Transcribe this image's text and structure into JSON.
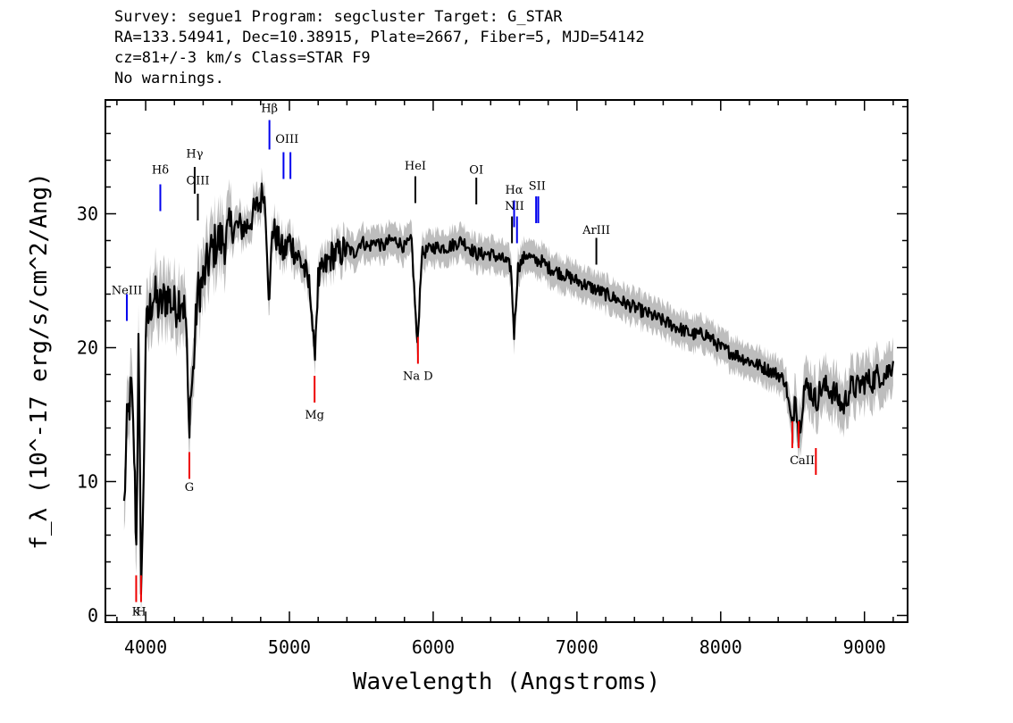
{
  "header": {
    "line1": "Survey: segue1 Program: segcluster Target: G_STAR",
    "line2": "RA=133.54941, Dec=10.38915, Plate=2667, Fiber=5, MJD=54142",
    "line3": "cz=81+/-3 km/s Class=STAR F9",
    "line4": "No warnings."
  },
  "chart_data": {
    "type": "line",
    "xlabel": "Wavelength (Angstroms)",
    "ylabel": "f_λ (10^-17 erg/s/cm^2/Ang)",
    "xlim": [
      3720,
      9300
    ],
    "ylim": [
      -0.5,
      38.5
    ],
    "x_ticks": [
      4000,
      5000,
      6000,
      7000,
      8000,
      9000
    ],
    "y_ticks": [
      0,
      10,
      20,
      30
    ],
    "grid": false,
    "series": [
      {
        "color": "#000000",
        "x": [
          3850,
          3870,
          3900,
          3920,
          3935,
          3950,
          3968,
          3980,
          4000,
          4050,
          4100,
          4150,
          4200,
          4250,
          4280,
          4300,
          4310,
          4330,
          4360,
          4400,
          4450,
          4500,
          4550,
          4600,
          4650,
          4700,
          4750,
          4800,
          4820,
          4840,
          4861,
          4880,
          4920,
          4960,
          5000,
          5050,
          5100,
          5150,
          5172,
          5200,
          5250,
          5300,
          5350,
          5400,
          5450,
          5500,
          5550,
          5600,
          5650,
          5700,
          5750,
          5800,
          5850,
          5890,
          5920,
          6000,
          6100,
          6200,
          6300,
          6400,
          6500,
          6540,
          6563,
          6590,
          6650,
          6700,
          6750,
          6800,
          6900,
          7000,
          7100,
          7200,
          7300,
          7400,
          7500,
          7600,
          7700,
          7800,
          7900,
          8000,
          8100,
          8200,
          8300,
          8400,
          8450,
          8498,
          8520,
          8542,
          8580,
          8620,
          8662,
          8700,
          8750,
          8800,
          8850,
          8900,
          8950,
          9000,
          9050,
          9100,
          9150,
          9200
        ],
        "y": [
          8,
          14,
          17,
          12,
          5,
          20,
          3,
          6,
          21,
          24,
          23,
          24,
          23,
          24,
          22,
          14,
          16,
          18,
          24,
          25,
          27,
          28,
          28,
          29,
          29,
          29,
          30,
          31,
          32,
          29,
          23,
          29,
          28,
          27,
          28,
          27,
          26,
          24,
          19,
          25,
          26,
          27,
          27,
          27.5,
          27,
          28,
          27.5,
          28,
          27.5,
          28,
          28,
          27.5,
          28,
          20,
          27,
          27.5,
          27.5,
          28,
          27,
          27,
          26.5,
          26,
          21,
          26,
          27,
          26.5,
          26.5,
          26,
          25.5,
          25,
          24.5,
          24,
          23.5,
          23,
          22.5,
          22,
          21.5,
          21,
          21,
          20,
          19.5,
          19,
          18.5,
          18,
          17.5,
          14,
          17,
          13.5,
          17,
          17,
          16,
          17,
          17,
          16.5,
          15.5,
          17,
          17,
          17.5,
          17.5,
          18,
          18,
          19
        ]
      }
    ],
    "emission_lines": [
      {
        "label": "NeIII",
        "x": 3869,
        "y_bottom": 22.0,
        "y_top": 24.0,
        "label_y": 24.0,
        "color": "#0000ee"
      },
      {
        "label": "Hδ",
        "x": 4102,
        "y_bottom": 30.2,
        "y_top": 32.2,
        "label_y": 33.0,
        "color": "#0000ee"
      },
      {
        "label": "Hγ",
        "x": 4341,
        "y_bottom": 31.5,
        "y_top": 33.5,
        "label_y": 34.2,
        "color": "#000000"
      },
      {
        "label": "OIII",
        "x": 4363,
        "y_bottom": 29.5,
        "y_top": 31.5,
        "label_y": 32.2,
        "color": "#000000"
      },
      {
        "label": "Hβ",
        "x": 4861,
        "y_bottom": 34.8,
        "y_top": 37.0,
        "label_y": 37.6,
        "color": "#0000ee"
      },
      {
        "label": "OIII",
        "x": 4959,
        "y_bottom": 32.6,
        "y_top": 34.6,
        "label_y": 35.3,
        "color": "#0000ee"
      },
      {
        "label": "OIII",
        "x": 5007,
        "y_bottom": 32.6,
        "y_top": 34.6,
        "label_y": 35.3,
        "color": "#0000ee"
      },
      {
        "label": "HeI",
        "x": 5876,
        "y_bottom": 30.8,
        "y_top": 32.8,
        "label_y": 33.3,
        "color": "#000000"
      },
      {
        "label": "OI",
        "x": 6300,
        "y_bottom": 30.7,
        "y_top": 32.7,
        "label_y": 33.0,
        "color": "#000000"
      },
      {
        "label": "NII",
        "x": 6548,
        "y_bottom": 27.8,
        "y_top": 29.8,
        "label_y": 30.3,
        "color": "#000000"
      },
      {
        "label": "Hα",
        "x": 6563,
        "y_bottom": 29.0,
        "y_top": 31.0,
        "label_y": 31.5,
        "color": "#0000ee"
      },
      {
        "label": "NII",
        "x": 6583,
        "y_bottom": 27.8,
        "y_top": 29.8,
        "label_y": 30.3,
        "color": "#0000ee"
      },
      {
        "label": "SII",
        "x": 6716,
        "y_bottom": 29.3,
        "y_top": 31.3,
        "label_y": 31.8,
        "color": "#0000ee"
      },
      {
        "label": "SII",
        "x": 6731,
        "y_bottom": 29.3,
        "y_top": 31.3,
        "label_y": 31.8,
        "color": "#0000ee"
      },
      {
        "label": "ArIII",
        "x": 7135,
        "y_bottom": 26.2,
        "y_top": 28.2,
        "label_y": 28.5,
        "color": "#000000"
      }
    ],
    "absorption_lines": [
      {
        "label": "K",
        "x": 3934,
        "y_bottom": 1.0,
        "y_top": 3.0,
        "label_y": 0.0,
        "color": "#ee0000"
      },
      {
        "label": "H",
        "x": 3968,
        "y_bottom": 1.0,
        "y_top": 3.0,
        "label_y": 0.0,
        "color": "#ee0000"
      },
      {
        "label": "G",
        "x": 4304,
        "y_bottom": 10.2,
        "y_top": 12.2,
        "label_y": 9.3,
        "color": "#ee0000"
      },
      {
        "label": "Mg",
        "x": 5175,
        "y_bottom": 15.9,
        "y_top": 17.9,
        "label_y": 14.7,
        "color": "#ee0000"
      },
      {
        "label": "Na D",
        "x": 5894,
        "y_bottom": 18.8,
        "y_top": 20.8,
        "label_y": 17.6,
        "color": "#ee0000"
      },
      {
        "label": "CaII",
        "x": 8498,
        "y_bottom": 12.5,
        "y_top": 14.5,
        "label_y": 11.3,
        "color": "#ee0000"
      },
      {
        "label": "CaII",
        "x": 8542,
        "y_bottom": 12.5,
        "y_top": 14.5,
        "label_y": 11.3,
        "color": "#ee0000"
      },
      {
        "label": "CaII",
        "x": 8662,
        "y_bottom": 10.5,
        "y_top": 12.5,
        "label_y": 11.3,
        "color": "#ee0000"
      }
    ],
    "colors": {
      "spectrum": "#000000",
      "error_band": "#bdbdbd",
      "emission": "#0000ee",
      "absorption": "#ee0000"
    }
  }
}
